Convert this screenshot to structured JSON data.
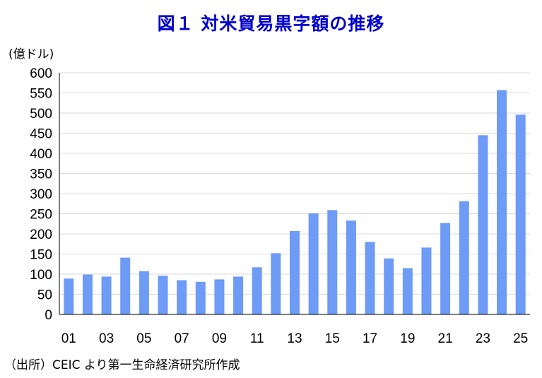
{
  "title": "図１ 対米貿易黒字額の推移",
  "colors": {
    "title": "#0000cc",
    "bar": "#6d9bf5",
    "grid": "#d9d9d9",
    "axis": "#000000"
  },
  "unit_label": "(億ドル)",
  "source": "（出所）CEIC より第一生命経済研究所作成",
  "chart_data": {
    "type": "bar",
    "title": "図１ 対米貿易黒字額の推移",
    "ylabel": "(億ドル)",
    "xlabel": "",
    "ylim": [
      0,
      600
    ],
    "y_ticks": [
      0,
      50,
      100,
      150,
      200,
      250,
      300,
      350,
      400,
      450,
      500,
      550,
      600
    ],
    "x_tick_labels": [
      "01",
      "03",
      "05",
      "07",
      "09",
      "11",
      "13",
      "15",
      "17",
      "19",
      "21",
      "23",
      "25"
    ],
    "grid": true,
    "categories": [
      "01",
      "02",
      "03",
      "04",
      "05",
      "06",
      "07",
      "08",
      "09",
      "10",
      "11",
      "12",
      "13",
      "14",
      "15",
      "16",
      "17",
      "18",
      "19",
      "20",
      "21",
      "22",
      "23",
      "24",
      "25"
    ],
    "values": [
      89,
      99,
      94,
      141,
      107,
      96,
      85,
      81,
      87,
      94,
      117,
      152,
      207,
      251,
      259,
      233,
      180,
      139,
      115,
      166,
      227,
      281,
      445,
      557,
      496
    ]
  }
}
